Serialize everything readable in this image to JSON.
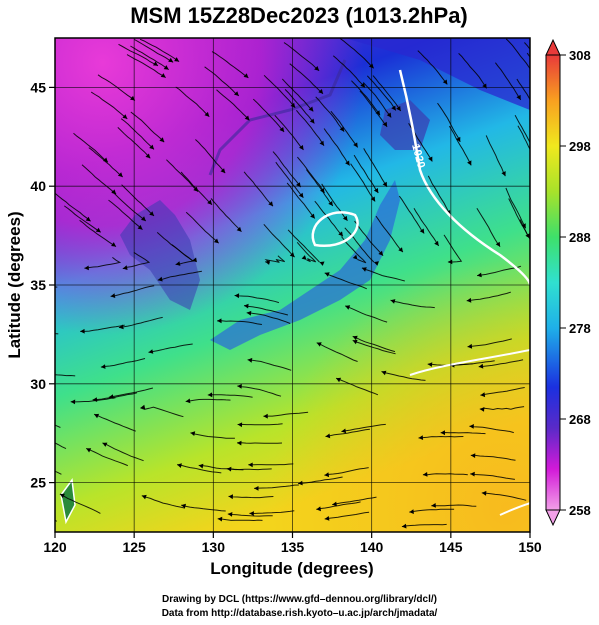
{
  "chart_data": {
    "type": "heatmap",
    "title": "MSM 15Z28Dec2023 (1013.2hPa)",
    "xlabel": "Longitude (degrees)",
    "ylabel": "Latitude  (degrees)",
    "xlim": [
      120,
      150
    ],
    "ylim": [
      22.5,
      47.5
    ],
    "x_ticks": [
      120,
      125,
      130,
      135,
      140,
      145,
      150
    ],
    "y_ticks": [
      25,
      30,
      35,
      40,
      45
    ],
    "x_tick_labels": [
      "120",
      "125",
      "130",
      "135",
      "140",
      "145",
      "150"
    ],
    "y_tick_labels": [
      "25",
      "30",
      "35",
      "40",
      "45"
    ],
    "grid": true,
    "colorbar": {
      "min": 258,
      "max": 308,
      "ticks": [
        258,
        268,
        278,
        288,
        298,
        308
      ],
      "tick_labels": [
        "258",
        "268",
        "278",
        "288",
        "298",
        "308"
      ]
    },
    "contour_label": "1020",
    "field_samples": [
      {
        "lon": 125,
        "lat": 46,
        "value": 259
      },
      {
        "lon": 133,
        "lat": 46,
        "value": 262
      },
      {
        "lon": 145,
        "lat": 46,
        "value": 266
      },
      {
        "lon": 125,
        "lat": 42,
        "value": 265
      },
      {
        "lon": 133,
        "lat": 40,
        "value": 276
      },
      {
        "lon": 140,
        "lat": 40,
        "value": 268
      },
      {
        "lon": 147,
        "lat": 40,
        "value": 281
      },
      {
        "lon": 123,
        "lat": 35,
        "value": 281
      },
      {
        "lon": 137,
        "lat": 36,
        "value": 270
      },
      {
        "lon": 146,
        "lat": 34,
        "value": 289
      },
      {
        "lon": 122,
        "lat": 30,
        "value": 282
      },
      {
        "lon": 130,
        "lat": 30,
        "value": 287
      },
      {
        "lon": 142,
        "lat": 30,
        "value": 291
      },
      {
        "lon": 123,
        "lat": 25,
        "value": 289
      },
      {
        "lon": 135,
        "lat": 24,
        "value": 294
      },
      {
        "lon": 148,
        "lat": 24,
        "value": 297
      }
    ],
    "colors": {
      "scale": [
        "#f2a0e8",
        "#d21ad8",
        "#5a2ac8",
        "#1b30e0",
        "#1fb0e8",
        "#30e0d0",
        "#3ee06a",
        "#a8e22a",
        "#f0e81e",
        "#f8b020",
        "#f05020",
        "#e83a3a"
      ],
      "contour": "#ffffff",
      "streamline": "#000000"
    }
  },
  "footer": {
    "line1": "Drawing by DCL (https://www.gfd–dennou.org/library/dcl/)",
    "line2": "Data from http://database.rish.kyoto–u.ac.jp/arch/jmadata/"
  }
}
